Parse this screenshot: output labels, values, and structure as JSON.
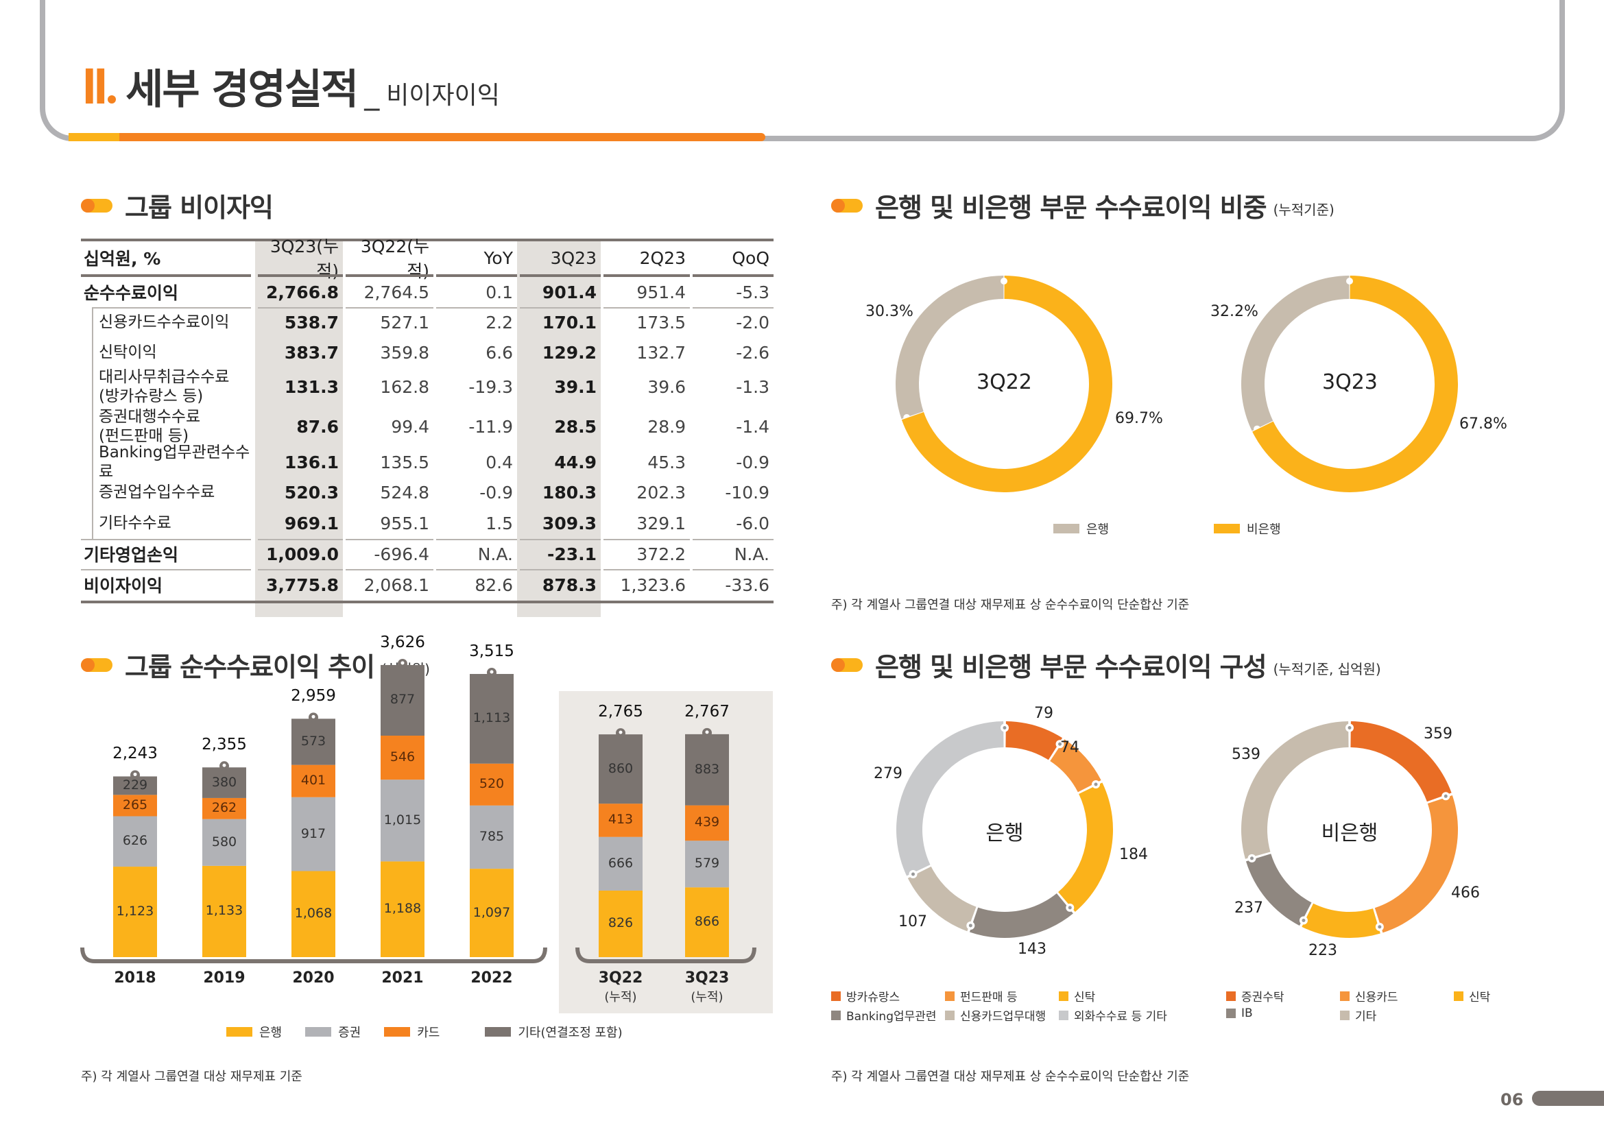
{
  "header": {
    "roman": "II",
    "title": "세부 경영실적",
    "separator": "_",
    "subtitle": "비이자이익"
  },
  "colors": {
    "orange": "#f5821f",
    "yellow": "#fbb21a",
    "dark_orange": "#e96d25",
    "light_orange": "#f5953c",
    "grey": "#b1b2b6",
    "dark_grey": "#7b7470",
    "beige": "#c7bcad",
    "mid_grey": "#8f8780",
    "light_grey": "#c8c9cb"
  },
  "table_section": {
    "title": "그룹 비이자익",
    "columns": [
      "십억원, %",
      "3Q23(누적)",
      "3Q22(누적)",
      "YoY",
      "3Q23",
      "2Q23",
      "QoQ"
    ],
    "rows": [
      {
        "label": "순수수료이익",
        "label2": "",
        "level": 0,
        "values": [
          "2,766.8",
          "2,764.5",
          "0.1",
          "901.4",
          "951.4",
          "-5.3"
        ]
      },
      {
        "label": "신용카드수수료이익",
        "label2": "",
        "level": 1,
        "values": [
          "538.7",
          "527.1",
          "2.2",
          "170.1",
          "173.5",
          "-2.0"
        ]
      },
      {
        "label": "신탁이익",
        "label2": "",
        "level": 1,
        "values": [
          "383.7",
          "359.8",
          "6.6",
          "129.2",
          "132.7",
          "-2.6"
        ]
      },
      {
        "label": "대리사무취급수수료",
        "label2": "(방카슈랑스 등)",
        "level": 1,
        "values": [
          "131.3",
          "162.8",
          "-19.3",
          "39.1",
          "39.6",
          "-1.3"
        ]
      },
      {
        "label": "증권대행수수료",
        "label2": "(펀드판매 등)",
        "level": 1,
        "values": [
          "87.6",
          "99.4",
          "-11.9",
          "28.5",
          "28.9",
          "-1.4"
        ]
      },
      {
        "label": "Banking업무관련수수료",
        "label2": "",
        "level": 1,
        "values": [
          "136.1",
          "135.5",
          "0.4",
          "44.9",
          "45.3",
          "-0.9"
        ]
      },
      {
        "label": "증권업수입수수료",
        "label2": "",
        "level": 1,
        "values": [
          "520.3",
          "524.8",
          "-0.9",
          "180.3",
          "202.3",
          "-10.9"
        ]
      },
      {
        "label": "기타수수료",
        "label2": "",
        "level": 1,
        "values": [
          "969.1",
          "955.1",
          "1.5",
          "309.3",
          "329.1",
          "-6.0"
        ]
      },
      {
        "label": "기타영업손익",
        "label2": "",
        "level": 0,
        "values": [
          "1,009.0",
          "-696.4",
          "N.A.",
          "-23.1",
          "372.2",
          "N.A."
        ]
      },
      {
        "label": "비이자이익",
        "label2": "",
        "level": 0,
        "values": [
          "3,775.8",
          "2,068.1",
          "82.6",
          "878.3",
          "1,323.6",
          "-33.6"
        ]
      }
    ]
  },
  "share_section": {
    "title": "은행 및 비은행 부문 수수료이익 비중",
    "subtitle": "(누적기준)",
    "note": "주) 각 계열사 그룹연결 대상 재무제표 상 순수수료이익 단순합산 기준",
    "legend": [
      {
        "label": "은행",
        "color": "#c7bcad"
      },
      {
        "label": "비은행",
        "color": "#fbb21a"
      }
    ]
  },
  "trend_section": {
    "title": "그룹 순수수료이익 추이",
    "subtitle": "(십억원)",
    "note": "주) 각 계열사 그룹연결 대상 재무제표 기준",
    "legend": [
      {
        "label": "은행",
        "color": "#fbb21a"
      },
      {
        "label": "증권",
        "color": "#b1b2b6"
      },
      {
        "label": "카드",
        "color": "#f5821f"
      },
      {
        "label": "기타(연결조정 포함)",
        "color": "#7b7470"
      }
    ]
  },
  "composition_section": {
    "title": "은행 및 비은행 부문 수수료이익 구성",
    "subtitle": "(누적기준, 십억원)",
    "note": "주) 각 계열사 그룹연결 대상 재무제표 상 순수수료이익 단순합산 기준",
    "bank_legend": [
      {
        "label": "방카슈랑스",
        "color": "#e96d25"
      },
      {
        "label": "펀드판매 등",
        "color": "#f5953c"
      },
      {
        "label": "신탁",
        "color": "#fbb21a"
      },
      {
        "label": "Banking업무관련",
        "color": "#8f8780"
      },
      {
        "label": "신용카드업무대행",
        "color": "#c7bcad"
      },
      {
        "label": "외화수수료 등 기타",
        "color": "#c8c9cb"
      }
    ],
    "nonbank_legend": [
      {
        "label": "증권수탁",
        "color": "#e96d25"
      },
      {
        "label": "신용카드",
        "color": "#f5953c"
      },
      {
        "label": "신탁",
        "color": "#fbb21a"
      },
      {
        "label": "IB",
        "color": "#8f8780"
      },
      {
        "label": "기타",
        "color": "#c7bcad"
      }
    ]
  },
  "page_number": "06",
  "chart_data": [
    {
      "type": "pie",
      "title": "3Q22",
      "categories": [
        "은행",
        "비은행"
      ],
      "values": [
        30.3,
        69.7
      ],
      "value_labels": [
        "30.3%",
        "69.7%"
      ],
      "colors": [
        "#c7bcad",
        "#fbb21a"
      ],
      "legend": "bottom"
    },
    {
      "type": "pie",
      "title": "3Q23",
      "categories": [
        "은행",
        "비은행"
      ],
      "values": [
        32.2,
        67.8
      ],
      "value_labels": [
        "32.2%",
        "67.8%"
      ],
      "colors": [
        "#c7bcad",
        "#fbb21a"
      ],
      "legend": "bottom"
    },
    {
      "type": "bar",
      "stacked": true,
      "title": "그룹 순수수료이익 추이",
      "ylabel": "십억원",
      "categories": [
        "2018",
        "2019",
        "2020",
        "2021",
        "2022",
        "3Q22",
        "3Q23"
      ],
      "category_sublabels": [
        "",
        "",
        "",
        "",
        "",
        "(누적)",
        "(누적)"
      ],
      "series": [
        {
          "name": "은행",
          "color": "#fbb21a",
          "values": [
            1123,
            1133,
            1068,
            1188,
            1097,
            826,
            866
          ],
          "labels": [
            "1,123",
            "1,133",
            "1,068",
            "1,188",
            "1,097",
            "826",
            "866"
          ]
        },
        {
          "name": "증권",
          "color": "#b1b2b6",
          "values": [
            626,
            580,
            917,
            1015,
            785,
            666,
            579
          ],
          "labels": [
            "626",
            "580",
            "917",
            "1,015",
            "785",
            "666",
            "579"
          ]
        },
        {
          "name": "카드",
          "color": "#f5821f",
          "values": [
            265,
            262,
            401,
            546,
            520,
            413,
            439
          ],
          "labels": [
            "265",
            "262",
            "401",
            "546",
            "520",
            "413",
            "439"
          ]
        },
        {
          "name": "기타(연결조정 포함)",
          "color": "#7b7470",
          "values": [
            229,
            380,
            573,
            877,
            1113,
            860,
            883
          ],
          "labels": [
            "229",
            "380",
            "573",
            "877",
            "1,113",
            "860",
            "883"
          ]
        }
      ],
      "totals": [
        2243,
        2355,
        2959,
        3626,
        3515,
        2765,
        2767
      ],
      "total_labels": [
        "2,243",
        "2,355",
        "2,959",
        "3,626",
        "3,515",
        "2,765",
        "2,767"
      ],
      "legend": "bottom"
    },
    {
      "type": "pie",
      "title": "은행",
      "categories": [
        "방카슈랑스",
        "펀드판매 등",
        "신탁",
        "Banking업무관련",
        "신용카드업무대행",
        "외화수수료 등 기타"
      ],
      "values": [
        79,
        74,
        184,
        143,
        107,
        279
      ],
      "colors": [
        "#e96d25",
        "#f5953c",
        "#fbb21a",
        "#8f8780",
        "#c7bcad",
        "#c8c9cb"
      ],
      "legend": "bottom"
    },
    {
      "type": "pie",
      "title": "비은행",
      "categories": [
        "증권수탁",
        "신용카드",
        "신탁",
        "IB",
        "기타"
      ],
      "values": [
        359,
        466,
        223,
        237,
        539
      ],
      "colors": [
        "#e96d25",
        "#f5953c",
        "#fbb21a",
        "#8f8780",
        "#c7bcad"
      ],
      "legend": "bottom"
    }
  ]
}
